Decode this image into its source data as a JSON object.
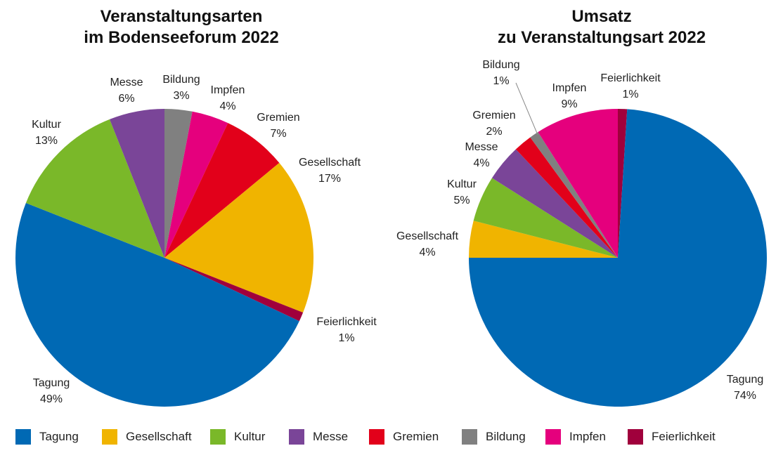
{
  "legend": [
    {
      "label": "Tagung",
      "color": "#0069b4"
    },
    {
      "label": "Gesellschaft",
      "color": "#f0b400"
    },
    {
      "label": "Kultur",
      "color": "#7ab829"
    },
    {
      "label": "Messe",
      "color": "#7a4598"
    },
    {
      "label": "Gremien",
      "color": "#e2001a"
    },
    {
      "label": "Bildung",
      "color": "#808080"
    },
    {
      "label": "Impfen",
      "color": "#e5007d"
    },
    {
      "label": "Feierlichkeit",
      "color": "#a0003c"
    }
  ],
  "chart_data": [
    {
      "type": "pie",
      "title": [
        "Veranstaltungsarten",
        "im Bodenseeforum 2022"
      ],
      "slices": [
        {
          "name": "Bildung",
          "value": 3,
          "label": "3%",
          "color": "#808080"
        },
        {
          "name": "Impfen",
          "value": 4,
          "label": "4%",
          "color": "#e5007d"
        },
        {
          "name": "Gremien",
          "value": 7,
          "label": "7%",
          "color": "#e2001a"
        },
        {
          "name": "Gesellschaft",
          "value": 17,
          "label": "17%",
          "color": "#f0b400"
        },
        {
          "name": "Feierlichkeit",
          "value": 1,
          "label": "1%",
          "color": "#a0003c"
        },
        {
          "name": "Tagung",
          "value": 49,
          "label": "49%",
          "color": "#0069b4"
        },
        {
          "name": "Kultur",
          "value": 13,
          "label": "13%",
          "color": "#7ab829"
        },
        {
          "name": "Messe",
          "value": 6,
          "label": "6%",
          "color": "#7a4598"
        }
      ]
    },
    {
      "type": "pie",
      "title": [
        "Umsatz",
        "zu Veranstaltungsart 2022"
      ],
      "slices": [
        {
          "name": "Feierlichkeit",
          "value": 1,
          "label": "1%",
          "color": "#a0003c"
        },
        {
          "name": "Tagung",
          "value": 74,
          "label": "74%",
          "color": "#0069b4"
        },
        {
          "name": "Gesellschaft",
          "value": 4,
          "label": "4%",
          "color": "#f0b400"
        },
        {
          "name": "Kultur",
          "value": 5,
          "label": "5%",
          "color": "#7ab829"
        },
        {
          "name": "Messe",
          "value": 4,
          "label": "4%",
          "color": "#7a4598"
        },
        {
          "name": "Gremien",
          "value": 2,
          "label": "2%",
          "color": "#e2001a"
        },
        {
          "name": "Bildung",
          "value": 1,
          "label": "1%",
          "color": "#808080"
        },
        {
          "name": "Impfen",
          "value": 9,
          "label": "9%",
          "color": "#e5007d"
        }
      ]
    }
  ]
}
